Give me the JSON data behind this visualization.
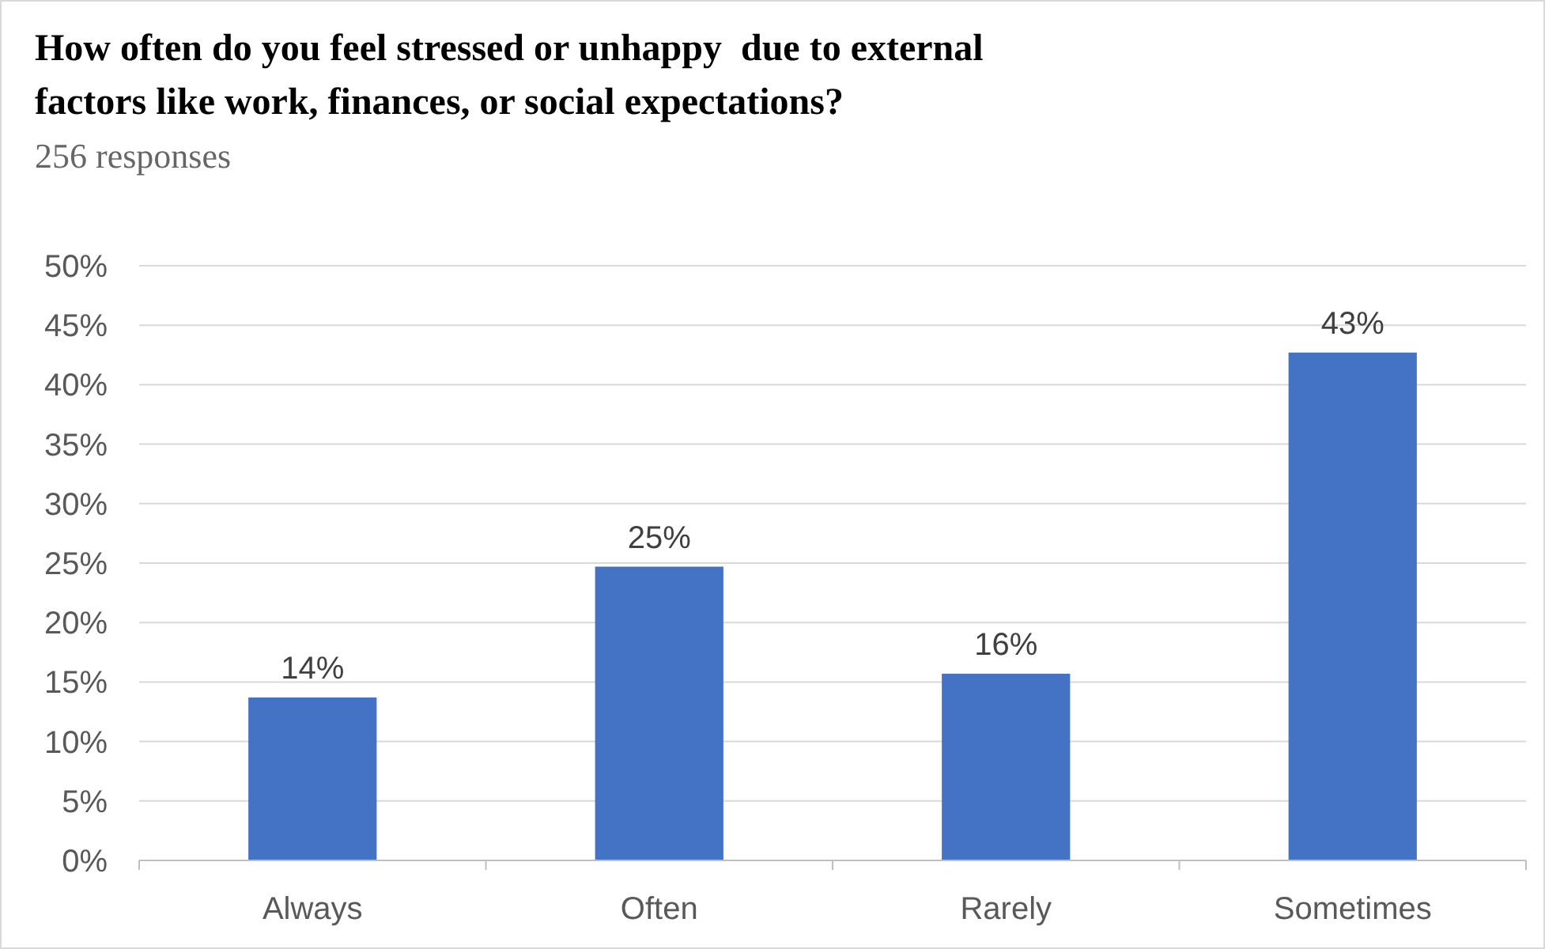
{
  "chart_data": {
    "type": "bar",
    "title": "How often do you feel stressed or unhappy  due to external\nfactors like work, finances, or social expectations?",
    "subtitle": "256 responses",
    "categories": [
      "Always",
      "Often",
      "Rarely",
      "Sometimes"
    ],
    "values": [
      13.7,
      24.7,
      15.7,
      42.7
    ],
    "value_labels": [
      "14%",
      "25%",
      "16%",
      "43%"
    ],
    "color": "#4472c4",
    "ylim": [
      0,
      50
    ],
    "yticks": [
      {
        "value": 0,
        "label": "0%"
      },
      {
        "value": 5,
        "label": "5%"
      },
      {
        "value": 10,
        "label": "10%"
      },
      {
        "value": 15,
        "label": "15%"
      },
      {
        "value": 20,
        "label": "20%"
      },
      {
        "value": 25,
        "label": "25%"
      },
      {
        "value": 30,
        "label": "30%"
      },
      {
        "value": 35,
        "label": "35%"
      },
      {
        "value": 40,
        "label": "40%"
      },
      {
        "value": 45,
        "label": "45%"
      },
      {
        "value": 50,
        "label": "50%"
      }
    ],
    "grid": "y"
  }
}
